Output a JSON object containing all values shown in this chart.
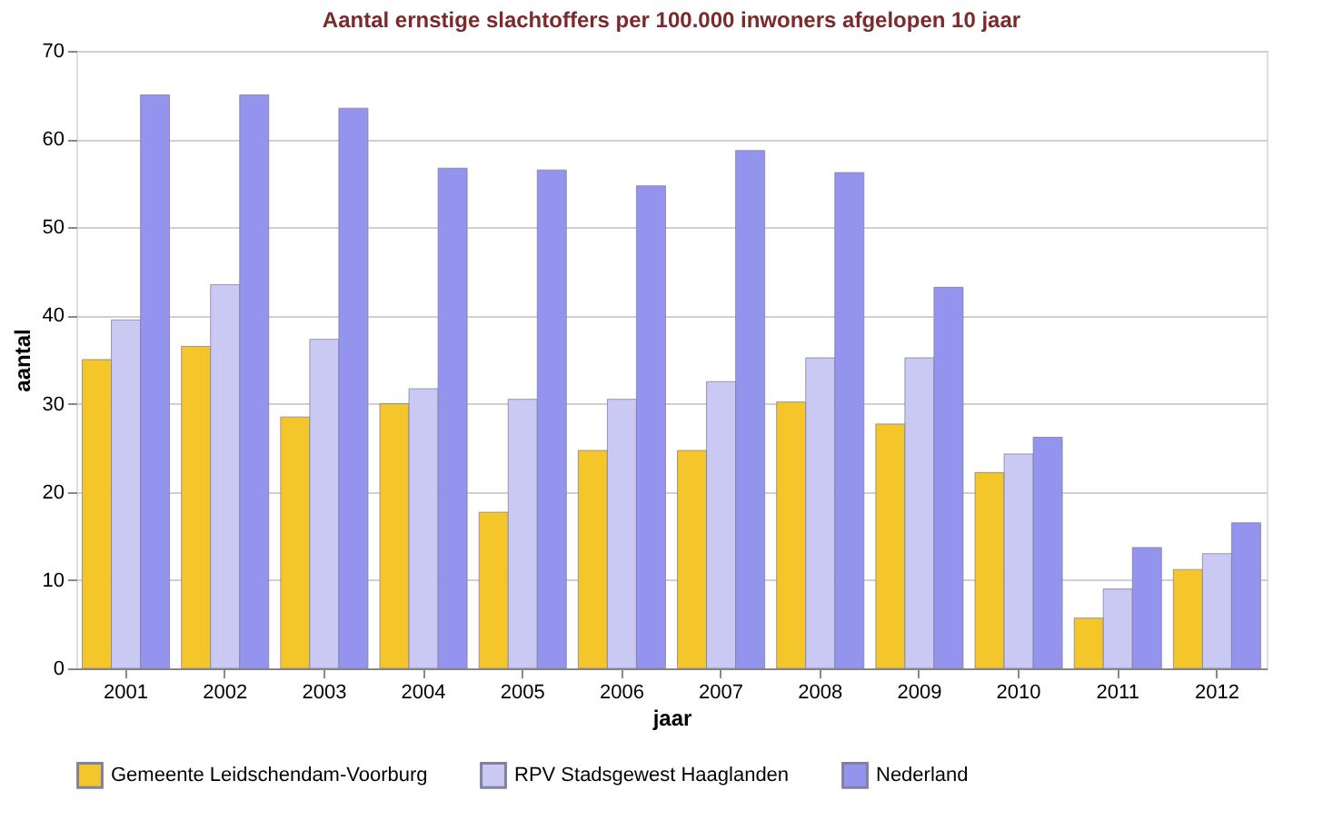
{
  "chart_data": {
    "type": "bar",
    "title": "Aantal ernstige slachtoffers per 100.000 inwoners afgelopen 10 jaar",
    "xlabel": "jaar",
    "ylabel": "aantal",
    "categories": [
      "2001",
      "2002",
      "2003",
      "2004",
      "2005",
      "2006",
      "2007",
      "2008",
      "2009",
      "2010",
      "2011",
      "2012"
    ],
    "series": [
      {
        "name": "Gemeente Leidschendam-Voorburg",
        "color": "#f5c62a",
        "values": [
          35,
          36.5,
          28.5,
          30,
          17.7,
          24.7,
          24.7,
          30.2,
          27.7,
          22.2,
          5.7,
          11.2
        ]
      },
      {
        "name": "RPV Stadsgewest Haaglanden",
        "color": "#c9c9f4",
        "values": [
          39.5,
          43.5,
          37.3,
          31.7,
          30.5,
          30.5,
          32.5,
          35.2,
          35.2,
          24.3,
          9,
          13
        ]
      },
      {
        "name": "Nederland",
        "color": "#9494ee",
        "values": [
          65,
          65,
          63.5,
          56.7,
          56.5,
          54.7,
          58.7,
          56.2,
          43.2,
          26.2,
          13.7,
          16.5
        ]
      }
    ],
    "ylim": [
      0,
      70
    ],
    "yticks": [
      0,
      10,
      20,
      30,
      40,
      50,
      60,
      70
    ],
    "grid": "y",
    "legend": "bottom"
  }
}
